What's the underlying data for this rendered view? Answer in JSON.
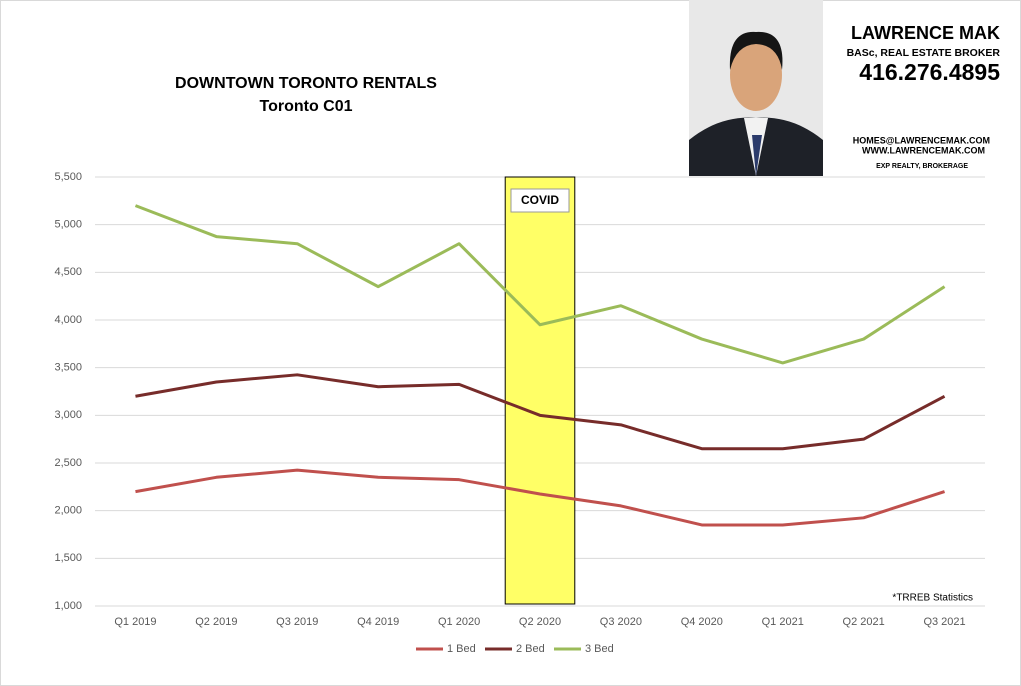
{
  "chart_data": {
    "type": "line",
    "title": "DOWNTOWN TORONTO RENTALS",
    "subtitle": "Toronto C01",
    "categories": [
      "Q1 2019",
      "Q2 2019",
      "Q3 2019",
      "Q4 2019",
      "Q1 2020",
      "Q2 2020",
      "Q3 2020",
      "Q4 2020",
      "Q1 2021",
      "Q2 2021",
      "Q3 2021"
    ],
    "series": [
      {
        "name": "1 Bed",
        "color": "#c0504d",
        "values": [
          2200,
          2350,
          2425,
          2350,
          2325,
          2175,
          2050,
          1850,
          1850,
          1925,
          2200
        ]
      },
      {
        "name": "2 Bed",
        "color": "#772c2a",
        "values": [
          3200,
          3350,
          3425,
          3300,
          3325,
          3000,
          2900,
          2650,
          2650,
          2750,
          3200
        ]
      },
      {
        "name": "3 Bed",
        "color": "#9bbb59",
        "values": [
          5200,
          4875,
          4800,
          4350,
          4800,
          3950,
          4150,
          3800,
          3550,
          3800,
          4350
        ]
      }
    ],
    "ylim": [
      1000,
      5500
    ],
    "yticks": [
      {
        "value": 1000,
        "label": "1,000"
      },
      {
        "value": 1500,
        "label": "1,500"
      },
      {
        "value": 2000,
        "label": "2,000"
      },
      {
        "value": 2500,
        "label": "2,500"
      },
      {
        "value": 3000,
        "label": "3,000"
      },
      {
        "value": 3500,
        "label": "3,500"
      },
      {
        "value": 4000,
        "label": "4,000"
      },
      {
        "value": 4500,
        "label": "4,500"
      },
      {
        "value": 5000,
        "label": "5,000"
      },
      {
        "value": 5500,
        "label": "5,500"
      }
    ],
    "grid": true,
    "legend": "bottom",
    "highlight": {
      "category": "Q2 2020",
      "label": "COVID",
      "color": "#ffff66"
    },
    "source_note": "*TRREB Statistics"
  },
  "branding": {
    "name": "LAWRENCE MAK",
    "credentials": "BASc, REAL ESTATE BROKER",
    "phone": "416.276.4895",
    "email": "HOMES@LAWRENCEMAK.COM",
    "website": "WWW.LAWRENCEMAK.COM",
    "brokerage": "EXP REALTY, BROKERAGE"
  }
}
